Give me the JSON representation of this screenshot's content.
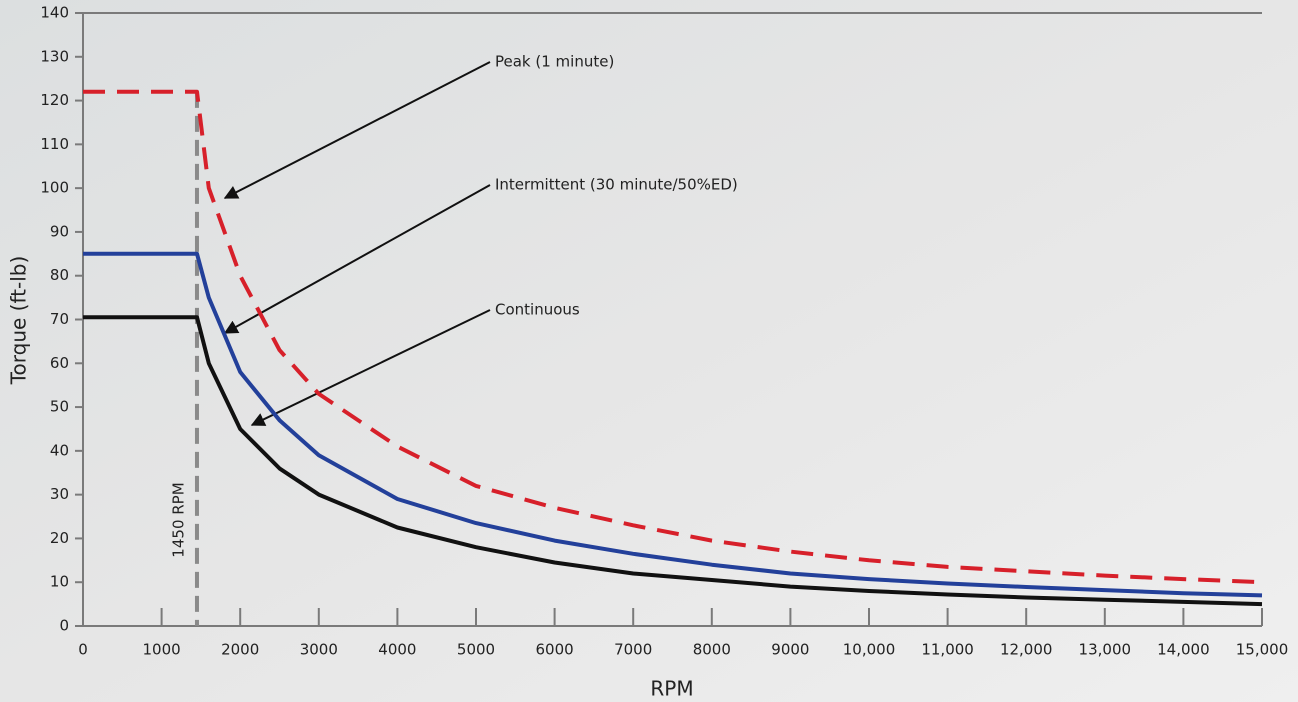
{
  "chart_data": {
    "type": "line",
    "xlabel": "RPM",
    "ylabel": "Torque (ft-lb)",
    "x": [
      0,
      1450,
      1600,
      2000,
      2500,
      3000,
      4000,
      5000,
      6000,
      7000,
      8000,
      9000,
      10000,
      11000,
      12000,
      13000,
      14000,
      15000
    ],
    "series": [
      {
        "name": "Peak (1 minute)",
        "color": "#d7202a",
        "dashed": true,
        "values": [
          122,
          122,
          100,
          80,
          63,
          53,
          41,
          32,
          27,
          23,
          19.5,
          17,
          15,
          13.5,
          12.5,
          11.5,
          10.7,
          10
        ]
      },
      {
        "name": "Intermittent (30 minute/50%ED)",
        "color": "#23409a",
        "dashed": false,
        "values": [
          85,
          85,
          75,
          58,
          47,
          39,
          29,
          23.5,
          19.5,
          16.5,
          14,
          12,
          10.7,
          9.7,
          8.9,
          8.2,
          7.5,
          7
        ]
      },
      {
        "name": "Continuous",
        "color": "#111111",
        "dashed": false,
        "values": [
          70.5,
          70.5,
          60,
          45,
          36,
          30,
          22.5,
          18,
          14.5,
          12,
          10.5,
          9,
          8,
          7.2,
          6.5,
          6,
          5.5,
          5
        ]
      }
    ],
    "vline": {
      "x": 1450,
      "label": "1450 RPM",
      "color": "#8a8a8a"
    },
    "xlim": [
      0,
      15000
    ],
    "xticks": [
      0,
      1000,
      2000,
      3000,
      4000,
      5000,
      6000,
      7000,
      8000,
      9000,
      {
        "value": 10000,
        "label": "10,000"
      },
      {
        "value": 11000,
        "label": "11,000"
      },
      {
        "value": 12000,
        "label": "12,000"
      },
      {
        "value": 13000,
        "label": "13,000"
      },
      {
        "value": 14000,
        "label": "14,000"
      },
      {
        "value": 15000,
        "label": "15,000"
      }
    ],
    "ylim": [
      0,
      140
    ],
    "yticks": [
      0,
      10,
      20,
      30,
      40,
      50,
      60,
      70,
      80,
      90,
      100,
      110,
      120,
      130,
      140
    ]
  }
}
